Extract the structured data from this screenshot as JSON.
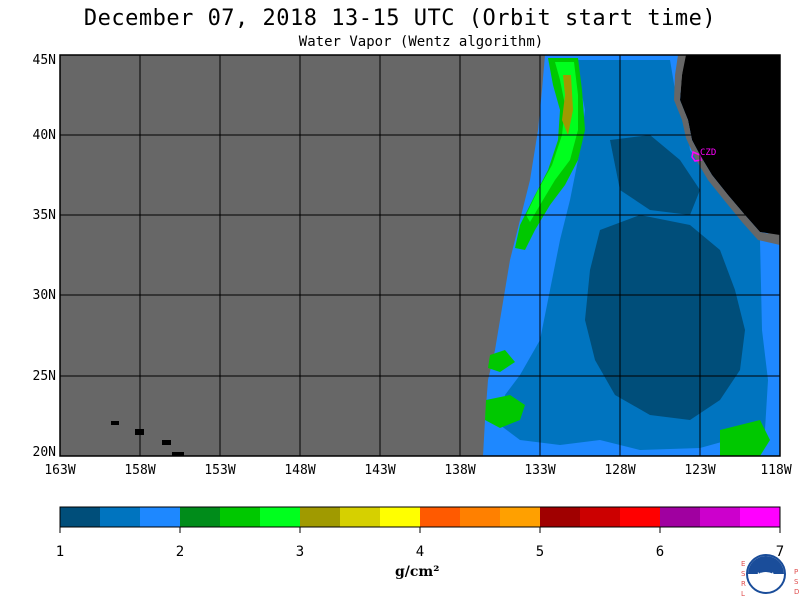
{
  "title": "December 07, 2018  13-15 UTC  (Orbit start time)",
  "subtitle": "Water Vapor (Wentz algorithm)",
  "map": {
    "lon_labels": [
      "163W",
      "158W",
      "153W",
      "148W",
      "143W",
      "138W",
      "133W",
      "128W",
      "123W",
      "118W"
    ],
    "lat_labels": [
      "45N",
      "40N",
      "35N",
      "30N",
      "25N",
      "20N"
    ],
    "station_label": "CZD"
  },
  "colorbar": {
    "colors": [
      "#004e7a",
      "#0074bf",
      "#1e88ff",
      "#008c1a",
      "#00c800",
      "#00ff1e",
      "#a09a00",
      "#d6d000",
      "#ffff00",
      "#ff5a00",
      "#ff8000",
      "#ffa000",
      "#a00000",
      "#cc0000",
      "#ff0000",
      "#a000a0",
      "#cc00cc",
      "#ff00ff"
    ],
    "labels": [
      "1",
      "2",
      "3",
      "4",
      "5",
      "6",
      "7"
    ],
    "unit": "g/cm²"
  },
  "logo": {
    "left_text": "ESRL",
    "right_text": "PSD",
    "center_text": "NOAA"
  }
}
